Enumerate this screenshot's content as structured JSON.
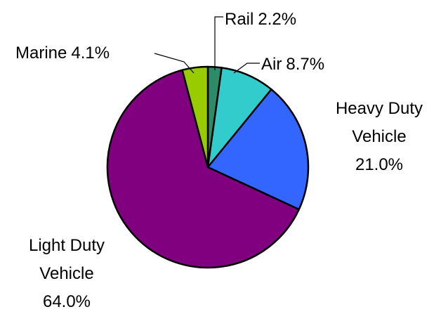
{
  "chart_data": {
    "type": "pie",
    "categories": [
      "Rail",
      "Air",
      "Heavy Duty Vehicle",
      "Light Duty Vehicle",
      "Marine"
    ],
    "values": [
      2.2,
      8.7,
      21.0,
      64.0,
      4.1
    ],
    "value_labels": [
      "2.2%",
      "8.7%",
      "21.0%",
      "64.0%",
      "4.1%"
    ],
    "colors": [
      "#2e8b6a",
      "#33cccc",
      "#3366ff",
      "#800080",
      "#99cc00"
    ]
  }
}
